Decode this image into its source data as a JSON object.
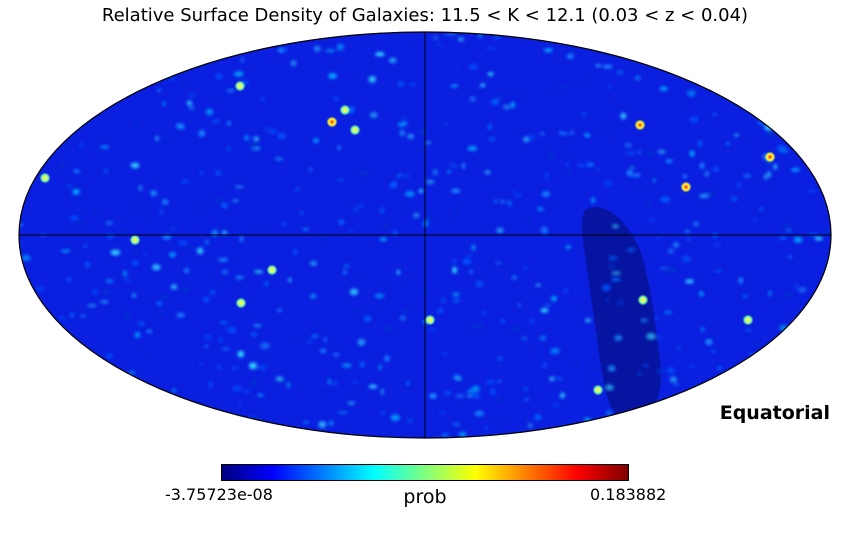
{
  "title": "Relative Surface Density of Galaxies: 11.5 < K < 12.1 (0.03 < z < 0.04)",
  "projection": "mollweide",
  "coordinate_frame": "Equatorial",
  "colormap": "jet",
  "colorbar": {
    "min_label": "-3.75723e-08",
    "max_label": "0.183882",
    "unit_label": "prob",
    "colors": [
      "#00007f",
      "#0000ff",
      "#007fff",
      "#00ffff",
      "#7fff7f",
      "#ffff00",
      "#ff7f00",
      "#ff0000",
      "#7f0000"
    ]
  },
  "map_colors": {
    "background": "#0a1fe0",
    "low_density_band": "#05139a",
    "graticule": "#000000"
  }
}
